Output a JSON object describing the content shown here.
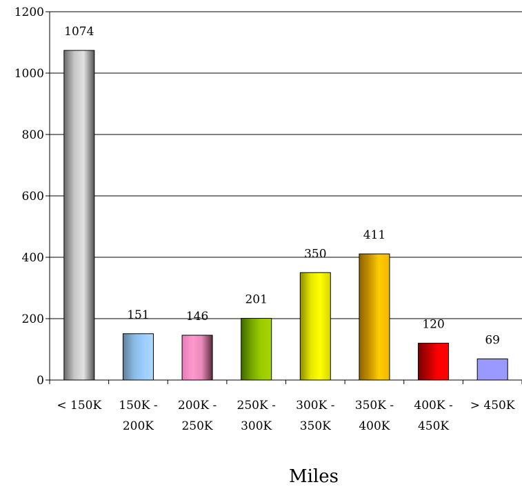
{
  "chart_data": {
    "type": "bar",
    "categories": [
      [
        "< 150K"
      ],
      [
        "150K -",
        "200K"
      ],
      [
        "200K -",
        "250K"
      ],
      [
        "250K -",
        "300K"
      ],
      [
        "300K -",
        "350K"
      ],
      [
        "350K -",
        "400K"
      ],
      [
        "400K -",
        "450K"
      ],
      [
        "> 450K"
      ]
    ],
    "values": [
      1074,
      151,
      146,
      201,
      350,
      411,
      120,
      69
    ],
    "data_labels": [
      "1074",
      "151",
      "146",
      "201",
      "350",
      "411",
      "120",
      "69"
    ],
    "xlabel": "Miles",
    "ylabel": "",
    "ylim": [
      0,
      1200
    ],
    "y_ticks": [
      0,
      200,
      400,
      600,
      800,
      1000,
      1200
    ],
    "y_tick_labels": [
      "0",
      "200",
      "400",
      "600",
      "800",
      "1000",
      "1200"
    ],
    "grid": true,
    "legend": "none",
    "bar_gradients": [
      [
        "#6a6a6a",
        "#c8c8c8",
        "#e2e2e2",
        "#555555"
      ],
      [
        "#5f7f99",
        "#8ab8e0",
        "#99ccff",
        "#b0d8ff"
      ],
      [
        "#e47db8",
        "#ff99cc",
        "#e889bb",
        "#5a2c3e"
      ],
      [
        "#3f6a00",
        "#77a600",
        "#99cc00",
        "#a6d600"
      ],
      [
        "#8c8c00",
        "#e6e600",
        "#ffff00",
        "#d6d600"
      ],
      [
        "#8c6400",
        "#c99400",
        "#ffcc00",
        "#f0b800"
      ],
      [
        "#7a0000",
        "#c00000",
        "#ff0000",
        "#ff0000"
      ],
      [
        "#9999ff",
        "#9999ff",
        "#9999ff",
        "#9999ff"
      ]
    ]
  }
}
